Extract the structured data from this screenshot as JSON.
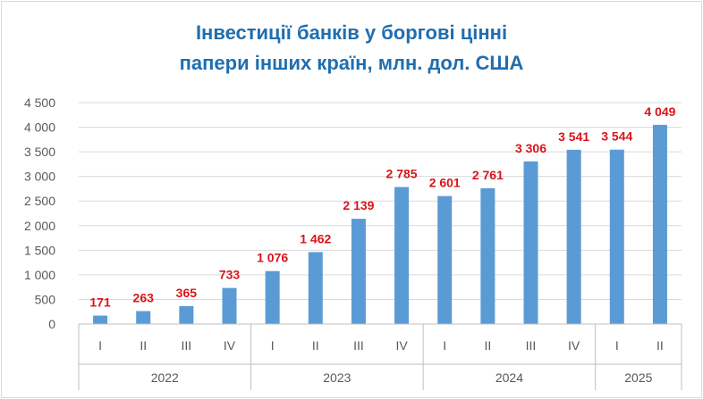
{
  "chart_data": {
    "type": "bar",
    "title_line1": "Інвестиції банків у боргові цінні",
    "title_line2": "папери інших країн, млн. дол. США",
    "categories": [
      "I",
      "II",
      "III",
      "IV",
      "I",
      "II",
      "III",
      "IV",
      "I",
      "II",
      "III",
      "IV",
      "I",
      "II"
    ],
    "groups": [
      {
        "label": "2022",
        "count": 4
      },
      {
        "label": "2023",
        "count": 4
      },
      {
        "label": "2024",
        "count": 4
      },
      {
        "label": "2025",
        "count": 2
      }
    ],
    "values": [
      171,
      263,
      365,
      733,
      1076,
      1462,
      2139,
      2785,
      2601,
      2761,
      3306,
      3541,
      3544,
      4049
    ],
    "value_labels": [
      "171",
      "263",
      "365",
      "733",
      "1 076",
      "1 462",
      "2 139",
      "2 785",
      "2 601",
      "2 761",
      "3 306",
      "3 541",
      "3 544",
      "4 049"
    ],
    "y_ticks": [
      0,
      500,
      1000,
      1500,
      2000,
      2500,
      3000,
      3500,
      4000,
      4500
    ],
    "y_tick_labels": [
      "0",
      "500",
      "1 000",
      "1 500",
      "2 000",
      "2 500",
      "3 000",
      "3 500",
      "4 000",
      "4 500"
    ],
    "ylim": [
      0,
      4500
    ],
    "grid": true,
    "legend": "none",
    "bar_color": "#5b9bd5",
    "label_color": "#d9141b",
    "title_color": "#1f6eb0"
  }
}
